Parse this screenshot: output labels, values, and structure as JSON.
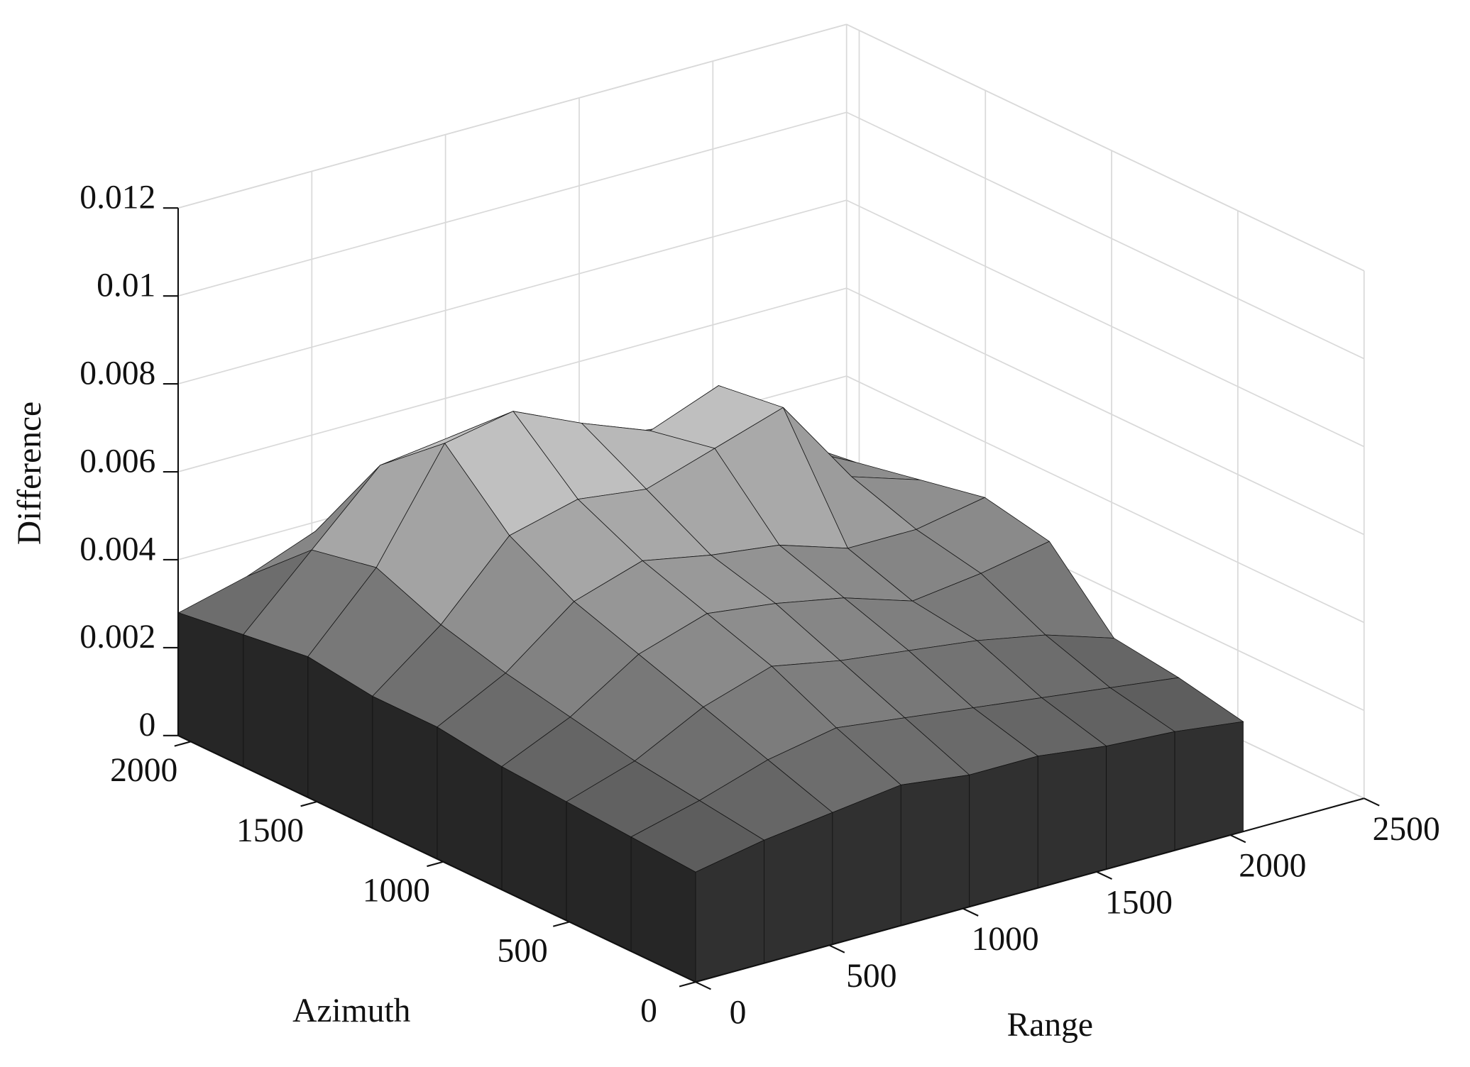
{
  "chart_data": {
    "type": "surface",
    "colormap": "gray",
    "xlabel": "Range",
    "ylabel": "Azimuth",
    "zlabel": "Difference",
    "x": [
      0,
      256,
      512,
      768,
      1024,
      1280,
      1536,
      1792,
      2048
    ],
    "y": [
      0,
      256,
      512,
      768,
      1024,
      1280,
      1536,
      1792,
      2048
    ],
    "z": [
      [
        0.0025,
        0.0028,
        0.003,
        0.0032,
        0.003,
        0.003,
        0.0028,
        0.0027,
        0.0025
      ],
      [
        0.0026,
        0.003,
        0.0035,
        0.0038,
        0.0036,
        0.0034,
        0.0032,
        0.003,
        0.0028
      ],
      [
        0.0027,
        0.0032,
        0.004,
        0.0045,
        0.0042,
        0.004,
        0.0038,
        0.0035,
        0.003
      ],
      [
        0.0028,
        0.0035,
        0.0045,
        0.005,
        0.0048,
        0.0045,
        0.004,
        0.0042,
        0.0045
      ],
      [
        0.003,
        0.0038,
        0.005,
        0.0055,
        0.0052,
        0.005,
        0.0045,
        0.0045,
        0.0048
      ],
      [
        0.003,
        0.0042,
        0.0058,
        0.0062,
        0.006,
        0.0065,
        0.007,
        0.005,
        0.0045
      ],
      [
        0.0032,
        0.0048,
        0.0072,
        0.0075,
        0.0068,
        0.0062,
        0.0068,
        0.005,
        0.0042
      ],
      [
        0.003,
        0.0045,
        0.006,
        0.0062,
        0.0058,
        0.0055,
        0.005,
        0.0045,
        0.004
      ],
      [
        0.0028,
        0.0032,
        0.0038,
        0.004,
        0.0042,
        0.0045,
        0.0042,
        0.004,
        0.0038
      ]
    ],
    "xlim": [
      0,
      2500
    ],
    "ylim": [
      0,
      2050
    ],
    "zlim": [
      0,
      0.012
    ],
    "xticks": [
      0,
      500,
      1000,
      1500,
      2000,
      2500
    ],
    "yticks": [
      0,
      500,
      1000,
      1500,
      2000
    ],
    "zticks": [
      0,
      0.002,
      0.004,
      0.006,
      0.008,
      0.01,
      0.012
    ],
    "grid": true
  }
}
